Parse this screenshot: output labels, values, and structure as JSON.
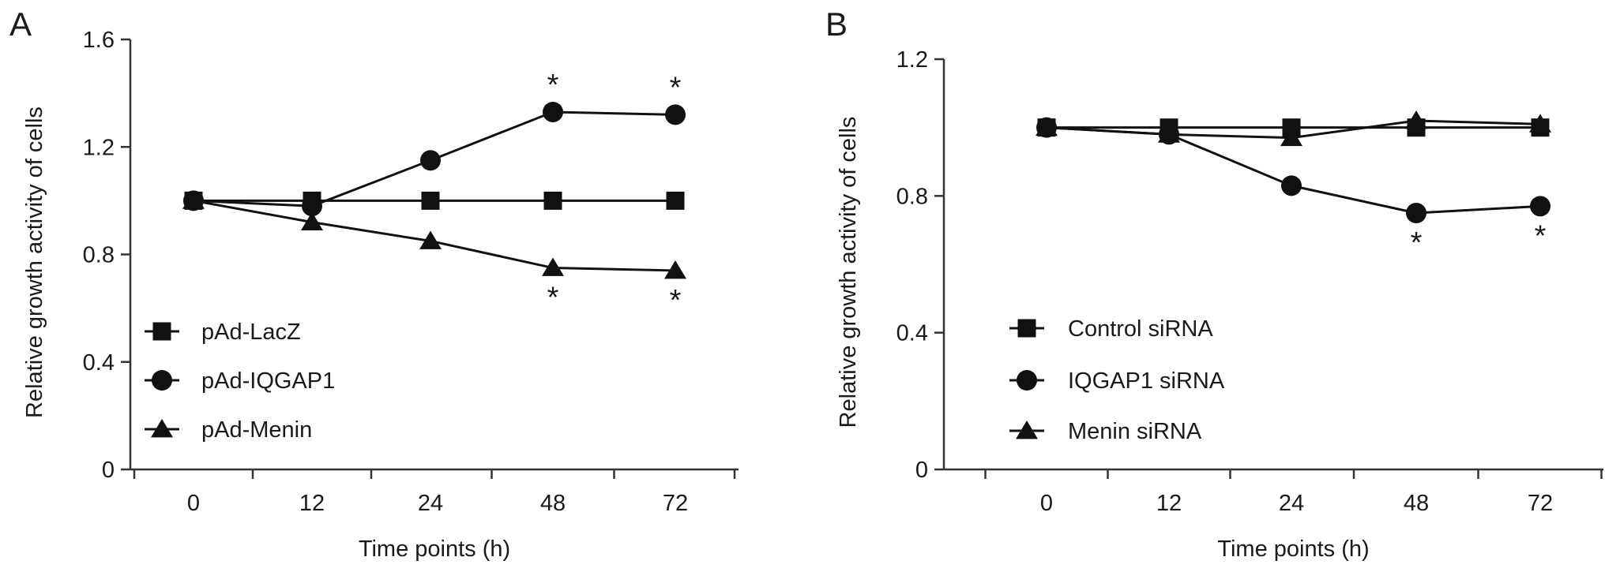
{
  "chart_data": [
    {
      "panel": "A",
      "type": "line",
      "categories": [
        "0",
        "12",
        "24",
        "48",
        "72"
      ],
      "xlabel": "Time points (h)",
      "ylabel": "Relative growth activity of cells",
      "ylim": [
        0,
        1.6
      ],
      "yticks": [
        "0",
        "0.4",
        "0.8",
        "1.2",
        "1.6"
      ],
      "grid": false,
      "legend_position": "bottom-left",
      "series": [
        {
          "name": "pAd-LacZ",
          "marker": "square",
          "values": [
            1.0,
            1.0,
            1.0,
            1.0,
            1.0
          ]
        },
        {
          "name": "pAd-IQGAP1",
          "marker": "circle",
          "values": [
            1.0,
            0.98,
            1.15,
            1.33,
            1.32
          ]
        },
        {
          "name": "pAd-Menin",
          "marker": "triangle",
          "values": [
            1.0,
            0.92,
            0.85,
            0.75,
            0.74
          ]
        }
      ],
      "significance": [
        {
          "x": "48",
          "y": 1.33,
          "label": "*",
          "side": "above"
        },
        {
          "x": "72",
          "y": 1.32,
          "label": "*",
          "side": "above"
        },
        {
          "x": "48",
          "y": 0.75,
          "label": "*",
          "side": "below"
        },
        {
          "x": "72",
          "y": 0.74,
          "label": "*",
          "side": "below"
        }
      ]
    },
    {
      "panel": "B",
      "type": "line",
      "categories": [
        "0",
        "12",
        "24",
        "48",
        "72"
      ],
      "xlabel": "Time points (h)",
      "ylabel": "Relative growth activity of cells",
      "ylim": [
        0,
        1.2
      ],
      "yticks": [
        "0",
        "0.4",
        "0.8",
        "1.2"
      ],
      "grid": false,
      "legend_position": "bottom-left",
      "series": [
        {
          "name": "Control siRNA",
          "marker": "square",
          "values": [
            1.0,
            1.0,
            1.0,
            1.0,
            1.0
          ]
        },
        {
          "name": "IQGAP1 siRNA",
          "marker": "circle",
          "values": [
            1.0,
            0.98,
            0.83,
            0.75,
            0.77
          ]
        },
        {
          "name": "Menin siRNA",
          "marker": "triangle",
          "values": [
            1.0,
            0.98,
            0.97,
            1.02,
            1.01
          ]
        }
      ],
      "significance": [
        {
          "x": "48",
          "y": 0.75,
          "label": "*",
          "side": "below"
        },
        {
          "x": "72",
          "y": 0.77,
          "label": "*",
          "side": "below"
        }
      ]
    }
  ]
}
